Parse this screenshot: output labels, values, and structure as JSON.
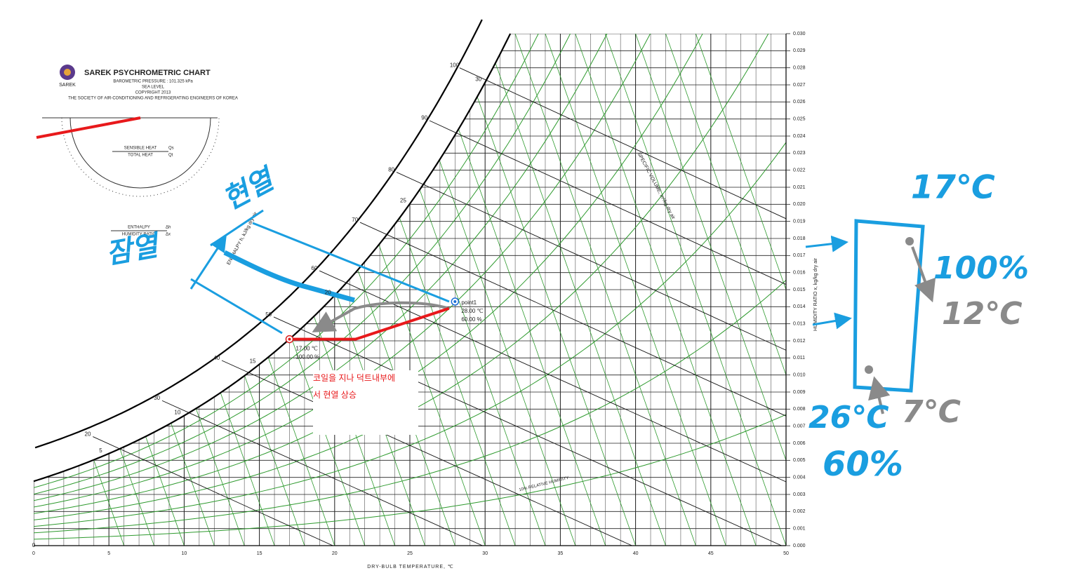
{
  "header": {
    "title": "SAREK PSYCHROMETRIC CHART",
    "logo": "SAREK",
    "pressure": "BAROMETRIC PRESSURE : 101.325 kPa",
    "level": "SEA LEVEL",
    "copyright": "COPYRIGHT 2013",
    "society": "THE SOCIETY OF AIR-CONDITIONING AND REFRIGERATING ENGINEERS OF KOREA"
  },
  "protractor": {
    "numerator": "SENSIBLE HEAT",
    "denominator": "TOTAL HEAT",
    "num_symbol": "Qs",
    "den_symbol": "Qt"
  },
  "enthalpy_ratio": {
    "numerator": "ENTHALPY",
    "denominator": "HUMIDITY RATIO",
    "num_symbol": "Δh",
    "den_symbol": "Δx"
  },
  "chart_data": {
    "type": "psychrometric",
    "x_label": "DRY-BULB TEMPERATURE, ℃",
    "y_label": "HUMIDITY RATIO x, kg/kg dry air",
    "enthalpy_label": "ENTHALPY h, kJ/kg dry air",
    "volume_label": "SPECIFIC VOLUME, m³/kg dry air",
    "rh_label": "10% RELATIVE HUMIDITY",
    "xlim": [
      0,
      50
    ],
    "ylim": [
      0,
      0.03
    ],
    "xticks": [
      0,
      5,
      10,
      15,
      20,
      25,
      30,
      35,
      40,
      45,
      50
    ],
    "yticks": [
      {
        "value": 0,
        "label": "0.000"
      },
      0.001,
      0.002,
      0.003,
      0.004,
      0.005,
      0.006,
      0.007,
      0.008,
      0.009,
      {
        "value": 0.01,
        "label": "0.010"
      },
      0.011,
      0.012,
      0.013,
      0.014,
      0.015,
      0.016,
      0.017,
      0.018,
      0.019,
      {
        "value": 0.02,
        "label": "0.020"
      },
      0.021,
      0.022,
      0.023,
      0.024,
      0.025,
      0.026,
      0.027,
      0.028,
      0.029,
      {
        "value": 0.03,
        "label": "0.030"
      }
    ],
    "enthalpy_ticks": [
      0,
      20,
      30,
      40,
      50,
      60,
      70,
      80,
      90,
      100
    ],
    "wet_bulb_ticks": [
      5,
      10,
      15,
      20,
      25,
      30
    ],
    "rh_curves": [
      10,
      20,
      30,
      40,
      50,
      60,
      70,
      80,
      90
    ],
    "rh_color": "#2e9a2e",
    "points": [
      {
        "name": "point1",
        "x": 28,
        "y": 0.0143,
        "rh": 60,
        "x_label": "28.00 ℃",
        "rh_label": "60.00 %",
        "color": "#1c6ed6"
      },
      {
        "x": 17,
        "y": 0.0121,
        "rh": 100,
        "x_label": "17.00 ℃",
        "rh_label": "100.00 %",
        "color": "#d91c1c"
      }
    ],
    "process_line": {
      "color": "#e8191b",
      "x": [
        17,
        21.4,
        27.6
      ],
      "y": [
        0.0121,
        0.0121,
        0.0139
      ]
    }
  },
  "annotations": {
    "sensible": "현열",
    "latent": "잠열",
    "note_line1": "코일을 지나 덕트내부에",
    "note_line2": "서 현열 상승",
    "t_top": "17℃",
    "rh_top": "100%",
    "t_top_out": "12℃",
    "t_bottom": "26℃",
    "rh_bottom": "60%",
    "t_bottom_out": "7℃"
  }
}
